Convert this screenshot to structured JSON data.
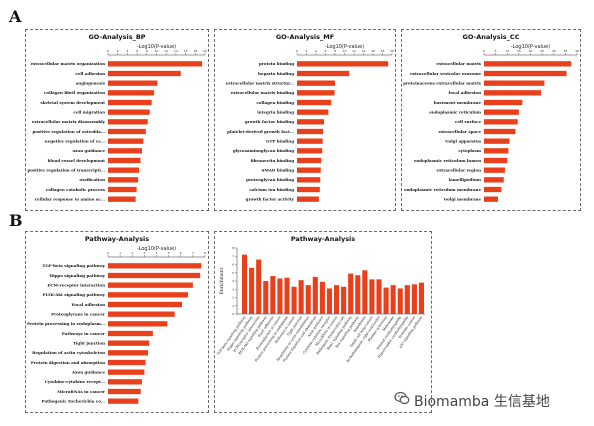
{
  "figure": {
    "labels": [
      "A",
      "B"
    ],
    "watermark": "Biomamba 生信基地",
    "bar_color": "#e8401c"
  },
  "chart_data": [
    {
      "type": "bar",
      "orientation": "horizontal",
      "title": "GO-Analysis_BP",
      "xlabel": "-Log10(P-value)",
      "xlim": [
        0,
        20
      ],
      "xticks": [
        0,
        2,
        4,
        6,
        8,
        10,
        12,
        14,
        16,
        18,
        20
      ],
      "categories": [
        "extracellular matrix organization",
        "cell adhesion",
        "angiogenesis",
        "collagen fibril organization",
        "skeletal system development",
        "cell migration",
        "extracellular matrix disassembly",
        "positive regulation of osteobla...",
        "negative regulation of ce...",
        "axon guidance",
        "blood vessel development",
        "positive regulation of transcripti...",
        "ossification",
        "collagen catabolic process",
        "cellular response to amino ac..."
      ],
      "values": [
        19.4,
        15.0,
        10.2,
        9.5,
        9.0,
        8.6,
        8.2,
        7.8,
        7.3,
        7.0,
        6.7,
        6.4,
        6.2,
        5.9,
        5.7
      ]
    },
    {
      "type": "bar",
      "orientation": "horizontal",
      "title": "GO-Analysis_MF",
      "xlabel": "-Log10(P-value)",
      "xlim": [
        0,
        20
      ],
      "xticks": [
        0,
        2,
        4,
        6,
        8,
        10,
        12,
        14,
        16,
        18,
        20
      ],
      "categories": [
        "protein binding",
        "heparin binding",
        "extracellular matrix structur...",
        "extracellular matrix binding",
        "collagen binding",
        "integrin binding",
        "growth factor binding",
        "platelet-derived growth fact...",
        "GTP binding",
        "glycosaminoglycan binding",
        "fibronectin binding",
        "SMAD binding",
        "proteoglycan binding",
        "calcium ion binding",
        "growth factor activity"
      ],
      "values": [
        19.2,
        11.0,
        8.0,
        7.9,
        7.2,
        6.6,
        5.7,
        5.5,
        5.4,
        5.3,
        5.1,
        5.0,
        4.9,
        4.8,
        4.6
      ]
    },
    {
      "type": "bar",
      "orientation": "horizontal",
      "title": "GO-Analysis_CC",
      "xlabel": "-Log10(P-value)",
      "xlim": [
        0,
        40
      ],
      "xticks": [
        0,
        5,
        10,
        15,
        20,
        25,
        30,
        35,
        40
      ],
      "categories": [
        "extracellular matrix",
        "extracellular vesicular exosome",
        "proteinaceous extracellular matrix",
        "focal adhesion",
        "basement membrane",
        "endoplasmic reticulum",
        "cell surface",
        "extracellular space",
        "Golgi apparatus",
        "cytoplasm",
        "endoplasmic reticulum lumen",
        "extracellular region",
        "lamellipodium",
        "endoplasmic reticulum membrane",
        "Golgi membrane"
      ],
      "values": [
        37.5,
        35.5,
        26.0,
        24.5,
        16.5,
        15.0,
        14.5,
        13.5,
        11.0,
        10.5,
        10.0,
        9.0,
        8.5,
        7.5,
        6.0
      ]
    },
    {
      "type": "bar",
      "orientation": "horizontal",
      "title": "Pathway-Analysis",
      "xlabel": "-Log10(P-value)",
      "xlim": [
        0,
        8
      ],
      "xticks": [
        0,
        1,
        2,
        3,
        4,
        5,
        6,
        7,
        8
      ],
      "categories": [
        "TGF-beta signaling pathway",
        "Hippo signaling pathway",
        "ECM-receptor interaction",
        "PI3K-Akt signaling pathway",
        "Focal adhesion",
        "Proteoglycans in cancer",
        "Protein processing in endoplasm...",
        "Pathways in cancer",
        "Tight junction",
        "Regulation of actin cytoskeleton",
        "Protein digestion and absorption",
        "Axon guidance",
        "Cytokine-cytokine recept...",
        "MicroRNAs in cancer",
        "Pathogenic Escherichia co..."
      ],
      "values": [
        7.7,
        7.6,
        7.0,
        6.6,
        6.1,
        5.5,
        4.9,
        3.7,
        3.4,
        3.3,
        3.1,
        3.0,
        2.8,
        2.7,
        2.5
      ]
    },
    {
      "type": "bar",
      "orientation": "vertical",
      "title": "Pathway-Analysis",
      "ylabel": "Enrichment",
      "ylim": [
        0,
        8
      ],
      "yticks": [
        0,
        1,
        2,
        3,
        4,
        5,
        6,
        7,
        8
      ],
      "categories": [
        "TGF-beta signaling pathway",
        "Hippo signaling pathway",
        "ECM-receptor interaction",
        "PI3K-Akt signaling pathway",
        "Focal adhesion",
        "Proteoglycans in cancer",
        "Protein processing in endoplasm",
        "Pathways in cancer",
        "Tight junction",
        "Regulation of actin cytoskeleton",
        "Protein digestion and absorption",
        "Axon guidance",
        "Cytokine-cytokine receptor",
        "MicroRNAs in cancer",
        "Pathogenic Escherichia coli",
        "Rap1 signaling pathway",
        "Ras signaling pathway",
        "Amoebiasis",
        "Small cell lung cancer",
        "Arrhythmogenic right ventricular",
        "Platelet activation",
        "Melanoma",
        "Dilated cardiomyopathy",
        "Hypertrophic cardiomyopathy",
        "Prostate cancer",
        "p53 signaling pathway"
      ],
      "values": [
        7.2,
        5.6,
        6.6,
        4.0,
        4.6,
        4.3,
        4.4,
        3.3,
        4.1,
        3.5,
        4.5,
        3.9,
        3.1,
        3.5,
        3.3,
        4.9,
        4.7,
        5.3,
        4.2,
        4.2,
        3.2,
        3.5,
        3.1,
        3.5,
        3.6,
        3.8
      ]
    }
  ]
}
